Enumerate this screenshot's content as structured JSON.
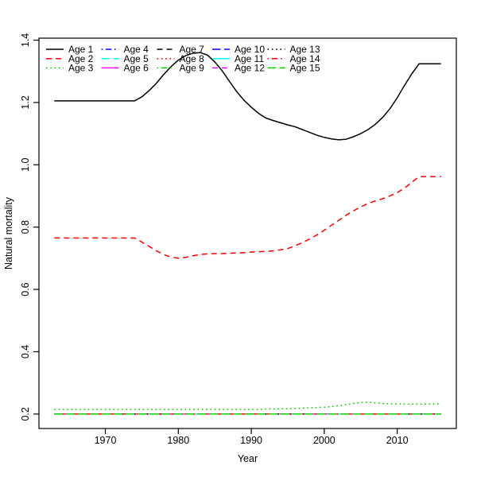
{
  "figure": {
    "title": "",
    "background": "#ffffff"
  },
  "chart_data": {
    "type": "line",
    "title": "",
    "xlabel": "Year",
    "ylabel": "Natural mortality",
    "xlim": [
      1960.9,
      2018.1
    ],
    "ylim": [
      0.1536,
      1.4064
    ],
    "grid": false,
    "x_ticks": [
      1970,
      1980,
      1990,
      2000,
      2010
    ],
    "x_tick_labels": [
      "1970",
      "1980",
      "1990",
      "2000",
      "2010"
    ],
    "y_ticks": [
      0.2,
      0.4,
      0.6,
      0.8,
      1.0,
      1.2,
      1.4
    ],
    "y_tick_labels": [
      "0.2",
      "0.4",
      "0.6",
      "0.8",
      "1.0",
      "1.2",
      "1.4"
    ],
    "x": [
      1963,
      1964,
      1965,
      1966,
      1967,
      1968,
      1969,
      1970,
      1971,
      1972,
      1973,
      1974,
      1975,
      1976,
      1977,
      1978,
      1979,
      1980,
      1981,
      1982,
      1983,
      1984,
      1985,
      1986,
      1987,
      1988,
      1989,
      1990,
      1991,
      1992,
      1993,
      1994,
      1995,
      1996,
      1997,
      1998,
      1999,
      2000,
      2001,
      2002,
      2003,
      2004,
      2005,
      2006,
      2007,
      2008,
      2009,
      2010,
      2011,
      2012,
      2013,
      2014,
      2015,
      2016
    ],
    "series": [
      {
        "name": "Age 1",
        "color": "#000000",
        "linestyle": "solid",
        "values": [
          1.205,
          1.205,
          1.205,
          1.205,
          1.205,
          1.205,
          1.205,
          1.205,
          1.205,
          1.205,
          1.205,
          1.205,
          1.218,
          1.238,
          1.262,
          1.29,
          1.315,
          1.336,
          1.35,
          1.358,
          1.36,
          1.352,
          1.33,
          1.302,
          1.268,
          1.235,
          1.207,
          1.185,
          1.165,
          1.15,
          1.142,
          1.135,
          1.128,
          1.122,
          1.113,
          1.104,
          1.095,
          1.088,
          1.083,
          1.08,
          1.082,
          1.09,
          1.1,
          1.113,
          1.13,
          1.152,
          1.18,
          1.215,
          1.255,
          1.292,
          1.324,
          1.324,
          1.324,
          1.324
        ]
      },
      {
        "name": "Age 2",
        "color": "#FF0000",
        "linestyle": "dashed",
        "values": [
          0.765,
          0.765,
          0.765,
          0.765,
          0.765,
          0.765,
          0.765,
          0.765,
          0.765,
          0.765,
          0.765,
          0.765,
          0.752,
          0.738,
          0.724,
          0.712,
          0.704,
          0.7,
          0.703,
          0.708,
          0.712,
          0.714,
          0.715,
          0.715,
          0.716,
          0.717,
          0.718,
          0.72,
          0.721,
          0.722,
          0.724,
          0.727,
          0.731,
          0.74,
          0.75,
          0.762,
          0.775,
          0.79,
          0.806,
          0.822,
          0.838,
          0.852,
          0.865,
          0.876,
          0.884,
          0.891,
          0.9,
          0.911,
          0.925,
          0.944,
          0.962,
          0.962,
          0.962,
          0.962
        ]
      },
      {
        "name": "Age 3",
        "color": "#00CD00",
        "linestyle": "dotted",
        "values": [
          0.215,
          0.215,
          0.215,
          0.215,
          0.215,
          0.215,
          0.215,
          0.215,
          0.215,
          0.215,
          0.215,
          0.215,
          0.215,
          0.215,
          0.215,
          0.215,
          0.215,
          0.215,
          0.215,
          0.215,
          0.215,
          0.215,
          0.215,
          0.215,
          0.215,
          0.215,
          0.215,
          0.215,
          0.215,
          0.216,
          0.216,
          0.217,
          0.217,
          0.218,
          0.219,
          0.22,
          0.221,
          0.222,
          0.224,
          0.227,
          0.23,
          0.234,
          0.237,
          0.238,
          0.236,
          0.234,
          0.233,
          0.232,
          0.232,
          0.232,
          0.232,
          0.232,
          0.232,
          0.233
        ]
      },
      {
        "name": "Age 4",
        "color": "#0000FF",
        "linestyle": "dotdash",
        "constant": 0.2
      },
      {
        "name": "Age 5",
        "color": "#00FFFF",
        "linestyle": "longdash",
        "constant": 0.2
      },
      {
        "name": "Age 6",
        "color": "#FF00FF",
        "linestyle": "solid",
        "constant": 0.2
      },
      {
        "name": "Age 7",
        "color": "#000000",
        "linestyle": "dashed",
        "constant": 0.2
      },
      {
        "name": "Age 8",
        "color": "#FF0000",
        "linestyle": "dotted",
        "constant": 0.2
      },
      {
        "name": "Age 9",
        "color": "#00CD00",
        "linestyle": "dotdash",
        "constant": 0.2
      },
      {
        "name": "Age 10",
        "color": "#0000FF",
        "linestyle": "longdash",
        "constant": 0.2
      },
      {
        "name": "Age 11",
        "color": "#00FFFF",
        "linestyle": "solid",
        "constant": 0.2
      },
      {
        "name": "Age 12",
        "color": "#FF00FF",
        "linestyle": "dashed",
        "constant": 0.2
      },
      {
        "name": "Age 13",
        "color": "#000000",
        "linestyle": "dotted",
        "constant": 0.2
      },
      {
        "name": "Age 14",
        "color": "#FF0000",
        "linestyle": "dotdash",
        "constant": 0.2
      },
      {
        "name": "Age 15",
        "color": "#00CD00",
        "linestyle": "longdash",
        "constant": 0.2
      }
    ],
    "legend": {
      "position": "topleft",
      "ncol": 5,
      "fill_order": "column-major",
      "border": false,
      "labels": [
        "Age 1",
        "Age 2",
        "Age 3",
        "Age 4",
        "Age 5",
        "Age 6",
        "Age 7",
        "Age 8",
        "Age 9",
        "Age 10",
        "Age 11",
        "Age 12",
        "Age 13",
        "Age 14",
        "Age 15"
      ]
    }
  }
}
